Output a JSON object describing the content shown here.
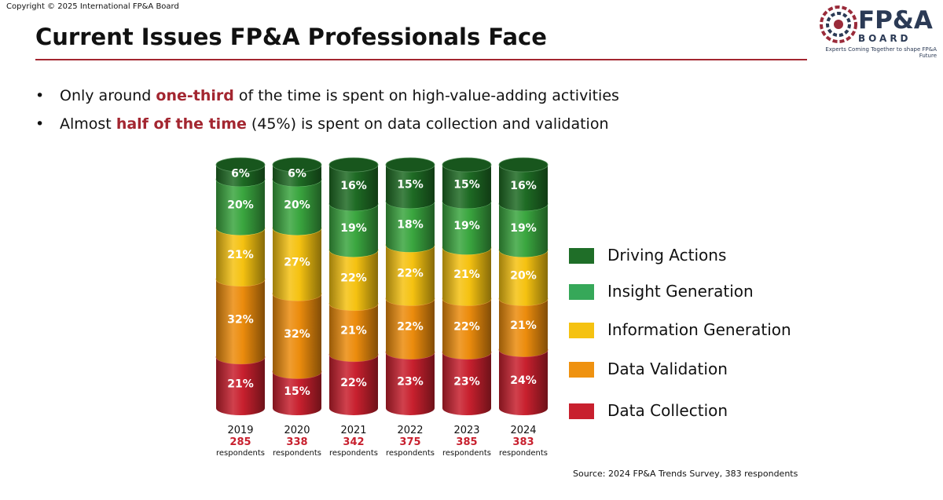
{
  "copyright": "Copyright © 2025 International  FP&A Board",
  "logo": {
    "name": "FP&A",
    "sub": "BOARD",
    "tagline": "Experts Coming Together to shape FP&A Future"
  },
  "title": "Current Issues FP&A Professionals Face",
  "bullets": [
    {
      "before": "Only around ",
      "highlight": "one-third",
      "after": " of the time is spent on high-value-adding activities"
    },
    {
      "before": "Almost ",
      "highlight": "half of the time",
      "after": " (45%) is spent on data collection and validation"
    }
  ],
  "chart_data": {
    "type": "bar",
    "stacked": true,
    "unit": "%",
    "categories": [
      "2019",
      "2020",
      "2021",
      "2022",
      "2023",
      "2024"
    ],
    "respondents": [
      "285",
      "338",
      "342",
      "375",
      "385",
      "383"
    ],
    "respondents_label": "respondents",
    "series": [
      {
        "name": "Data Collection",
        "color": "#c8202e",
        "values": [
          21,
          15,
          22,
          23,
          23,
          24
        ]
      },
      {
        "name": "Data Validation",
        "color": "#ec8c0d",
        "values": [
          32,
          32,
          21,
          22,
          22,
          21
        ]
      },
      {
        "name": "Information Generation",
        "color": "#f5c211",
        "values": [
          21,
          27,
          22,
          22,
          21,
          20
        ]
      },
      {
        "name": "Insight Generation",
        "color": "#3aa63f",
        "values": [
          20,
          20,
          19,
          18,
          19,
          19
        ]
      },
      {
        "name": "Driving Actions",
        "color": "#1e6b24",
        "values": [
          6,
          6,
          16,
          15,
          15,
          16
        ]
      }
    ],
    "legend_order": [
      "Driving Actions",
      "Insight Generation",
      "Information Generation",
      "Data Validation",
      "Data Collection"
    ],
    "legend_colors": [
      "#1f6e28",
      "#36a859",
      "#f5c211",
      "#ef9210",
      "#c8202e"
    ],
    "legend_position": "right"
  },
  "source": "Source: 2024 FP&A Trends Survey, 383 respondents"
}
